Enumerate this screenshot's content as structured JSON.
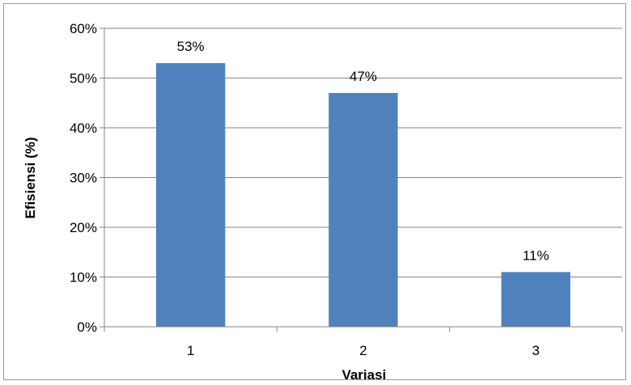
{
  "chart_data": {
    "type": "bar",
    "title": "",
    "xlabel": "Variasi",
    "ylabel": "Efisiensi (%)",
    "categories": [
      "1",
      "2",
      "3"
    ],
    "values": [
      53,
      47,
      11
    ],
    "value_labels": [
      "53%",
      "47%",
      "11%"
    ],
    "ylim": [
      0,
      60
    ],
    "yticks": [
      0,
      10,
      20,
      30,
      40,
      50,
      60
    ],
    "ytick_labels": [
      "0%",
      "10%",
      "20%",
      "30%",
      "40%",
      "50%",
      "60%"
    ],
    "grid": true,
    "legend": "none",
    "bar_color": "#4F81BD",
    "grid_color": "#868686"
  }
}
